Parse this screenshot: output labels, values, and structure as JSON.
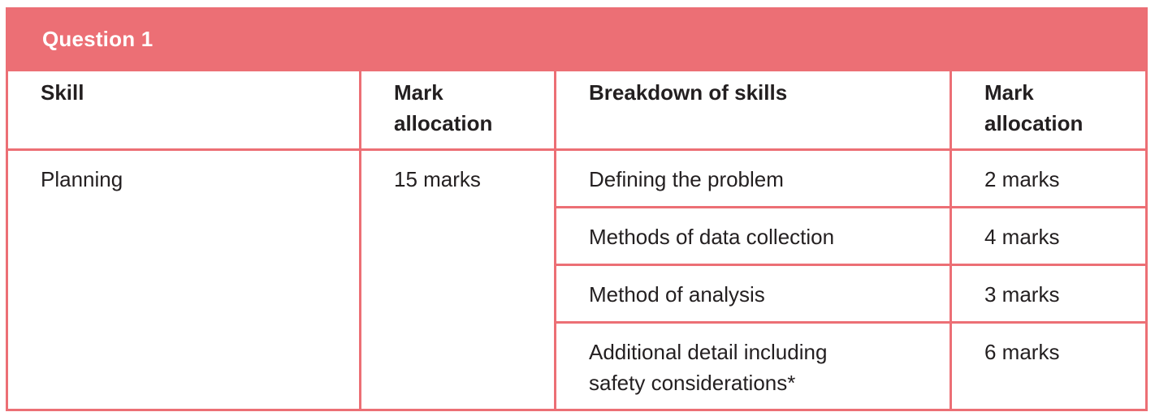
{
  "table": {
    "title": "Question 1",
    "headers": {
      "skill": "Skill",
      "mark_allocation_line1": "Mark",
      "mark_allocation_line2": "allocation",
      "breakdown": "Breakdown of skills",
      "breakdown_mark_line1": "Mark",
      "breakdown_mark_line2": "allocation"
    },
    "skill": "Planning",
    "skill_marks": "15 marks",
    "breakdown_rows": [
      {
        "label": "Defining the problem",
        "marks": "2 marks"
      },
      {
        "label": "Methods of data collection",
        "marks": "4 marks"
      },
      {
        "label": "Method of analysis",
        "marks": "3 marks"
      },
      {
        "label_line1": "Additional detail including",
        "label_line2": "safety considerations*",
        "marks": "6 marks"
      }
    ],
    "colors": {
      "accent": "#ec6f75",
      "text": "#231f20",
      "title_text": "#ffffff"
    }
  }
}
